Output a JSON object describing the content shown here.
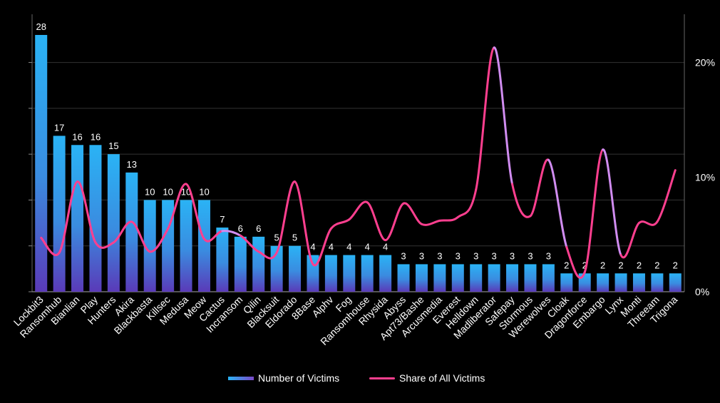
{
  "chart_data": {
    "type": "bar",
    "categories": [
      "Lockbit3",
      "Ransomhub",
      "Bianlian",
      "Play",
      "Hunters",
      "Akira",
      "Blackbasta",
      "Killsec",
      "Medusa",
      "Meow",
      "Cactus",
      "Incransom",
      "Qilin",
      "Blacksuit",
      "Eldorado",
      "8Base",
      "Alphv",
      "Fog",
      "Ransomhouse",
      "Rhysida",
      "Abyss",
      "Apt73/Bashe",
      "Arcusmedia",
      "Everest",
      "Helldown",
      "Madliberator",
      "Safepay",
      "Stormous",
      "Werewolves",
      "Cloak",
      "Dragonforce",
      "Embargo",
      "Lynx",
      "Monti",
      "Threeam",
      "Trigona"
    ],
    "series": [
      {
        "name": "Number of Victims",
        "type": "bar",
        "axis": "left",
        "values": [
          28,
          17,
          16,
          16,
          15,
          13,
          10,
          10,
          10,
          10,
          7,
          6,
          6,
          5,
          5,
          4,
          4,
          4,
          4,
          4,
          3,
          3,
          3,
          3,
          3,
          3,
          3,
          3,
          3,
          2,
          2,
          2,
          2,
          2,
          2,
          2
        ]
      },
      {
        "name": "Share of All Victims",
        "type": "line",
        "axis": "right",
        "values": [
          4.7,
          3.4,
          9.6,
          4.3,
          4.3,
          6.1,
          3.5,
          5.5,
          9.4,
          4.6,
          5.3,
          4.9,
          3.5,
          3.4,
          9.6,
          2.4,
          5.5,
          6.3,
          7.8,
          4.5,
          7.7,
          5.9,
          6.2,
          6.5,
          8.9,
          21.3,
          9.4,
          6.6,
          11.5,
          3.9,
          1.7,
          12.4,
          3.2,
          6.0,
          6.1,
          10.6
        ]
      }
    ],
    "y_left": {
      "min": 0,
      "max": 28,
      "ticks": [
        0,
        5,
        10,
        15,
        20,
        25
      ]
    },
    "y_right": {
      "min": 0,
      "max": 22.4,
      "ticks": [
        0,
        10,
        20
      ],
      "tick_labels": [
        "0%",
        "10%",
        "20%"
      ]
    },
    "grid": true,
    "legend_placement": "bottom"
  },
  "colors": {
    "background": "#000000",
    "bar_top": "#2ab3f5",
    "bar_bottom": "#5a3ab8",
    "line_pink": "#ff3f8f",
    "line_violet": "#d08cf0",
    "grid": "#333333",
    "text": "#ffffff"
  },
  "legend": {
    "bar_label": "Number of Victims",
    "line_label": "Share of All Victims"
  }
}
